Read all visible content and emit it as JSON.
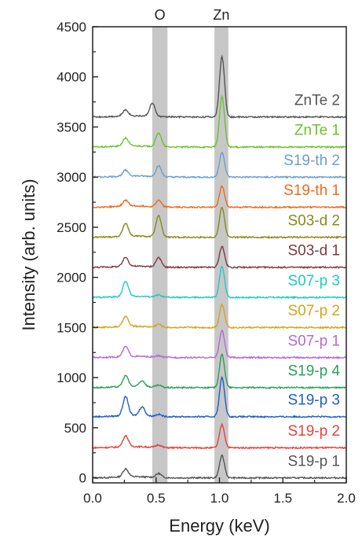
{
  "chart_data": {
    "type": "line",
    "title": "",
    "xlabel": "Energy (keV)",
    "ylabel": "Intensity (arb. units)",
    "xlim": [
      0.0,
      2.0
    ],
    "ylim": [
      -50,
      4500
    ],
    "x_ticks": [
      0.0,
      0.5,
      1.0,
      1.5,
      2.0
    ],
    "x_tick_labels": [
      "0.0",
      "0.5",
      "1.0",
      "1.5",
      "2.0"
    ],
    "y_ticks": [
      0,
      500,
      1000,
      1500,
      2000,
      2500,
      3000,
      3500,
      4000,
      4500
    ],
    "y_tick_labels": [
      "0",
      "500",
      "1000",
      "1500",
      "2000",
      "2500",
      "3000",
      "3500",
      "4000",
      "4500"
    ],
    "grid": false,
    "legend": "inline labels at right end of each trace",
    "highlight_bands": [
      {
        "label": "O",
        "range": [
          0.47,
          0.59
        ],
        "color": "#bdbdbd"
      },
      {
        "label": "Zn",
        "range": [
          0.96,
          1.07
        ],
        "color": "#bdbdbd"
      }
    ],
    "series": [
      {
        "name": "S19-p 1",
        "color": "#555555",
        "baseline": 0,
        "peaks": [
          {
            "x": 0.26,
            "h": 80
          },
          {
            "x": 0.52,
            "h": 40
          },
          {
            "x": 1.02,
            "h": 220
          }
        ]
      },
      {
        "name": "S19-p 2",
        "color": "#e8413c",
        "baseline": 300,
        "peaks": [
          {
            "x": 0.26,
            "h": 110
          },
          {
            "x": 0.52,
            "h": 25
          },
          {
            "x": 1.02,
            "h": 230
          }
        ]
      },
      {
        "name": "S19-p 3",
        "color": "#1e5fc8",
        "baseline": 610,
        "peaks": [
          {
            "x": 0.26,
            "h": 190
          },
          {
            "x": 0.39,
            "h": 90
          },
          {
            "x": 0.52,
            "h": 20
          },
          {
            "x": 1.02,
            "h": 390
          }
        ]
      },
      {
        "name": "S19-p 4",
        "color": "#2aa05a",
        "baseline": 900,
        "peaks": [
          {
            "x": 0.26,
            "h": 110
          },
          {
            "x": 0.39,
            "h": 60
          },
          {
            "x": 0.52,
            "h": 20
          },
          {
            "x": 1.02,
            "h": 330
          }
        ]
      },
      {
        "name": "S07-p 1",
        "color": "#b36ad8",
        "baseline": 1200,
        "peaks": [
          {
            "x": 0.26,
            "h": 100
          },
          {
            "x": 0.52,
            "h": 15
          },
          {
            "x": 1.02,
            "h": 270
          }
        ]
      },
      {
        "name": "S07-p 2",
        "color": "#d4a51b",
        "baseline": 1500,
        "peaks": [
          {
            "x": 0.26,
            "h": 100
          },
          {
            "x": 0.52,
            "h": 30
          },
          {
            "x": 1.02,
            "h": 230
          }
        ]
      },
      {
        "name": "S07-p 3",
        "color": "#22c9c9",
        "baseline": 1800,
        "peaks": [
          {
            "x": 0.26,
            "h": 150
          },
          {
            "x": 0.52,
            "h": 20
          },
          {
            "x": 1.02,
            "h": 310
          }
        ]
      },
      {
        "name": "S03-d 1",
        "color": "#7a3c42",
        "baseline": 2100,
        "peaks": [
          {
            "x": 0.26,
            "h": 90
          },
          {
            "x": 0.52,
            "h": 95
          },
          {
            "x": 1.02,
            "h": 210
          }
        ]
      },
      {
        "name": "S03-d 2",
        "color": "#8a8a1a",
        "baseline": 2400,
        "peaks": [
          {
            "x": 0.26,
            "h": 130
          },
          {
            "x": 0.52,
            "h": 210
          },
          {
            "x": 1.02,
            "h": 300
          }
        ]
      },
      {
        "name": "S19-th 1",
        "color": "#f06a1a",
        "baseline": 2700,
        "peaks": [
          {
            "x": 0.26,
            "h": 60
          },
          {
            "x": 0.52,
            "h": 65
          },
          {
            "x": 1.02,
            "h": 210
          }
        ]
      },
      {
        "name": "S19-th 2",
        "color": "#6a9fd0",
        "baseline": 3000,
        "peaks": [
          {
            "x": 0.26,
            "h": 60
          },
          {
            "x": 0.52,
            "h": 110
          },
          {
            "x": 1.02,
            "h": 250
          }
        ]
      },
      {
        "name": "ZnTe 1",
        "color": "#6cc22a",
        "baseline": 3300,
        "peaks": [
          {
            "x": 0.26,
            "h": 80
          },
          {
            "x": 0.52,
            "h": 140
          },
          {
            "x": 1.02,
            "h": 500
          }
        ]
      },
      {
        "name": "ZnTe 2",
        "color": "#555555",
        "baseline": 3600,
        "peaks": [
          {
            "x": 0.26,
            "h": 60
          },
          {
            "x": 0.47,
            "h": 130
          },
          {
            "x": 1.02,
            "h": 600
          }
        ]
      }
    ]
  },
  "band_labels": {
    "o": "O",
    "zn": "Zn"
  }
}
